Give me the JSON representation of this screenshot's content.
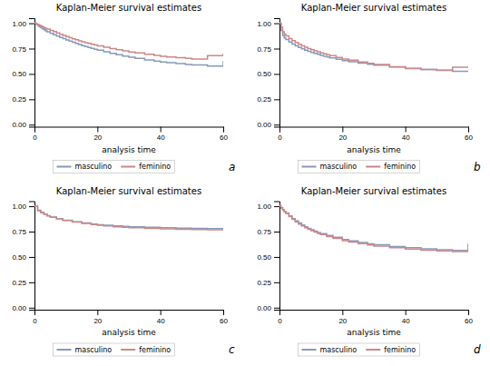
{
  "chart_data": [
    {
      "type": "step",
      "title": "Kaplan-Meier survival estimates",
      "xlabel": "analysis time",
      "annotations": [
        "a"
      ],
      "legend": "bottom",
      "grid": false,
      "xlim": [
        0,
        60
      ],
      "xticks": [
        0,
        20,
        40,
        60
      ],
      "ylim": [
        -0.02,
        1.05
      ],
      "yticks": [
        {
          "value": 0.0,
          "label": "0.00"
        },
        {
          "value": 0.25,
          "label": "0.25"
        },
        {
          "value": 0.5,
          "label": "0.50"
        },
        {
          "value": 0.75,
          "label": "0.75"
        },
        {
          "value": 1.0,
          "label": "1.00"
        }
      ],
      "x": [
        0,
        0.5,
        1,
        1.5,
        2,
        2.5,
        3,
        3.5,
        4,
        5,
        6,
        7,
        8,
        9,
        10,
        11,
        12,
        13,
        14,
        15,
        16,
        17,
        18,
        19,
        20,
        22,
        24,
        26,
        28,
        30,
        32,
        35,
        38,
        40,
        42,
        45,
        48,
        50,
        55,
        60
      ],
      "series": [
        {
          "name": "masculino",
          "color": "#8899bb",
          "values": [
            1.0,
            0.99,
            0.978,
            0.966,
            0.955,
            0.945,
            0.935,
            0.925,
            0.915,
            0.9,
            0.887,
            0.873,
            0.86,
            0.848,
            0.836,
            0.824,
            0.812,
            0.801,
            0.79,
            0.78,
            0.77,
            0.761,
            0.752,
            0.743,
            0.735,
            0.718,
            0.703,
            0.689,
            0.676,
            0.664,
            0.653,
            0.638,
            0.626,
            0.618,
            0.611,
            0.602,
            0.594,
            0.589,
            0.577,
            0.63
          ]
        },
        {
          "name": "feminino",
          "color": "#cc8888",
          "values": [
            1.0,
            0.995,
            0.988,
            0.98,
            0.972,
            0.965,
            0.957,
            0.95,
            0.943,
            0.93,
            0.917,
            0.904,
            0.892,
            0.88,
            0.868,
            0.858,
            0.847,
            0.837,
            0.827,
            0.818,
            0.809,
            0.801,
            0.793,
            0.785,
            0.778,
            0.763,
            0.75,
            0.738,
            0.727,
            0.717,
            0.707,
            0.694,
            0.682,
            0.675,
            0.668,
            0.66,
            0.653,
            0.648,
            0.68,
            0.7
          ]
        }
      ]
    },
    {
      "type": "step",
      "title": "Kaplan-Meier survival estimates",
      "xlabel": "analysis time",
      "annotations": [
        "b"
      ],
      "legend": "bottom",
      "grid": false,
      "xlim": [
        0,
        60
      ],
      "xticks": [
        0,
        20,
        40,
        60
      ],
      "ylim": [
        -0.02,
        1.05
      ],
      "yticks": [
        {
          "value": 0.0,
          "label": "0.00"
        },
        {
          "value": 0.25,
          "label": "0.25"
        },
        {
          "value": 0.5,
          "label": "0.50"
        },
        {
          "value": 0.75,
          "label": "0.75"
        },
        {
          "value": 1.0,
          "label": "1.00"
        }
      ],
      "x": [
        0,
        0.5,
        1,
        1.5,
        2,
        3,
        4,
        5,
        6,
        7,
        8,
        9,
        10,
        11,
        12,
        13,
        14,
        15,
        16,
        18,
        20,
        22,
        25,
        28,
        30,
        35,
        40,
        45,
        50,
        55,
        60
      ],
      "series": [
        {
          "name": "masculino",
          "color": "#8899bb",
          "values": [
            1.0,
            0.93,
            0.88,
            0.855,
            0.84,
            0.815,
            0.795,
            0.778,
            0.762,
            0.748,
            0.735,
            0.723,
            0.712,
            0.702,
            0.693,
            0.684,
            0.675,
            0.667,
            0.659,
            0.645,
            0.632,
            0.621,
            0.607,
            0.595,
            0.587,
            0.568,
            0.553,
            0.543,
            0.535,
            0.527,
            0.52
          ]
        },
        {
          "name": "feminino",
          "color": "#cc8888",
          "values": [
            1.0,
            0.96,
            0.915,
            0.893,
            0.875,
            0.848,
            0.828,
            0.81,
            0.793,
            0.778,
            0.764,
            0.751,
            0.739,
            0.728,
            0.718,
            0.708,
            0.698,
            0.689,
            0.68,
            0.663,
            0.648,
            0.635,
            0.618,
            0.604,
            0.594,
            0.572,
            0.556,
            0.545,
            0.537,
            0.567,
            0.57
          ]
        }
      ]
    },
    {
      "type": "step",
      "title": "Kaplan-Meier survival estimates",
      "xlabel": "analysis time",
      "annotations": [
        "c"
      ],
      "legend": "bottom",
      "grid": false,
      "xlim": [
        0,
        60
      ],
      "xticks": [
        0,
        20,
        40,
        60
      ],
      "ylim": [
        -0.02,
        1.05
      ],
      "yticks": [
        {
          "value": 0.0,
          "label": "0.00"
        },
        {
          "value": 0.25,
          "label": "0.25"
        },
        {
          "value": 0.5,
          "label": "0.50"
        },
        {
          "value": 0.75,
          "label": "0.75"
        },
        {
          "value": 1.0,
          "label": "1.00"
        }
      ],
      "x": [
        0,
        1,
        2,
        3,
        4,
        5,
        7,
        9,
        12,
        15,
        18,
        20,
        22,
        25,
        28,
        30,
        35,
        40,
        45,
        50,
        55,
        60
      ],
      "series": [
        {
          "name": "masculino",
          "color": "#8899bb",
          "values": [
            1.0,
            0.955,
            0.935,
            0.92,
            0.905,
            0.893,
            0.877,
            0.862,
            0.847,
            0.835,
            0.825,
            0.818,
            0.813,
            0.806,
            0.801,
            0.798,
            0.792,
            0.788,
            0.784,
            0.782,
            0.78,
            0.778
          ]
        },
        {
          "name": "feminino",
          "color": "#cc8888",
          "values": [
            1.0,
            0.96,
            0.94,
            0.922,
            0.906,
            0.892,
            0.875,
            0.86,
            0.843,
            0.83,
            0.82,
            0.812,
            0.807,
            0.798,
            0.793,
            0.789,
            0.782,
            0.777,
            0.773,
            0.77,
            0.768,
            0.765
          ]
        }
      ]
    },
    {
      "type": "step",
      "title": "Kaplan-Meier survival estimates",
      "xlabel": "analysis time",
      "annotations": [
        "d"
      ],
      "legend": "bottom",
      "grid": false,
      "xlim": [
        0,
        60
      ],
      "xticks": [
        0,
        20,
        40,
        60
      ],
      "ylim": [
        -0.02,
        1.05
      ],
      "yticks": [
        {
          "value": 0.0,
          "label": "0.00"
        },
        {
          "value": 0.25,
          "label": "0.25"
        },
        {
          "value": 0.5,
          "label": "0.50"
        },
        {
          "value": 0.75,
          "label": "0.75"
        },
        {
          "value": 1.0,
          "label": "1.00"
        }
      ],
      "x": [
        0,
        0.5,
        1,
        1.5,
        2,
        3,
        4,
        5,
        6,
        7,
        8,
        9,
        10,
        11,
        12,
        13,
        15,
        17,
        20,
        22,
        25,
        28,
        30,
        35,
        40,
        45,
        50,
        55,
        60
      ],
      "series": [
        {
          "name": "masculino",
          "color": "#8899bb",
          "values": [
            1.0,
            0.985,
            0.967,
            0.95,
            0.934,
            0.904,
            0.878,
            0.855,
            0.834,
            0.815,
            0.798,
            0.782,
            0.768,
            0.755,
            0.742,
            0.731,
            0.711,
            0.694,
            0.672,
            0.659,
            0.643,
            0.629,
            0.62,
            0.603,
            0.59,
            0.58,
            0.572,
            0.565,
            0.63
          ]
        },
        {
          "name": "feminino",
          "color": "#cc8888",
          "values": [
            1.0,
            0.982,
            0.963,
            0.945,
            0.929,
            0.898,
            0.871,
            0.847,
            0.825,
            0.806,
            0.789,
            0.773,
            0.758,
            0.745,
            0.732,
            0.721,
            0.701,
            0.683,
            0.661,
            0.647,
            0.631,
            0.617,
            0.607,
            0.59,
            0.577,
            0.567,
            0.559,
            0.552,
            0.63
          ]
        }
      ]
    }
  ]
}
